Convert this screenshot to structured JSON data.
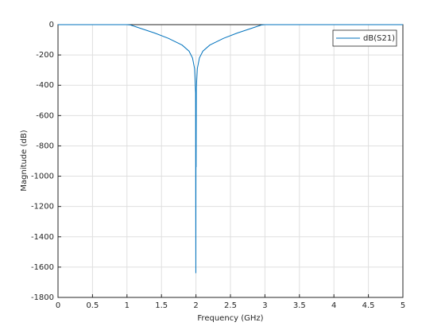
{
  "chart_data": {
    "type": "line",
    "xlabel": "Frequency (GHz)",
    "ylabel": "Magnitude (dB)",
    "xlim": [
      0,
      5
    ],
    "xticks": [
      0,
      0.5,
      1,
      1.5,
      2,
      2.5,
      3,
      3.5,
      4,
      4.5,
      5
    ],
    "ylim": [
      -1800,
      0
    ],
    "yticks": [
      -1800,
      -1600,
      -1400,
      -1200,
      -1000,
      -800,
      -600,
      -400,
      -200,
      0
    ],
    "grid": true,
    "legend": "northeast",
    "series": [
      {
        "name": "dB(S21)",
        "color": "#0072bd",
        "x": [
          0,
          0.5,
          1,
          1.05,
          1.2,
          1.4,
          1.6,
          1.8,
          1.9,
          1.95,
          1.98,
          1.995,
          1.998,
          2.0,
          2.002,
          2.005,
          2.02,
          2.05,
          2.1,
          2.2,
          2.4,
          2.6,
          2.8,
          2.95,
          3,
          3.5,
          4,
          4.5,
          5
        ],
        "values": [
          0,
          0,
          0,
          -2,
          -25,
          -55,
          -90,
          -135,
          -175,
          -220,
          -290,
          -450,
          -1640,
          -700,
          -940,
          -420,
          -290,
          -220,
          -175,
          -135,
          -90,
          -55,
          -25,
          -2,
          0,
          0,
          0,
          0,
          0
        ]
      }
    ]
  }
}
